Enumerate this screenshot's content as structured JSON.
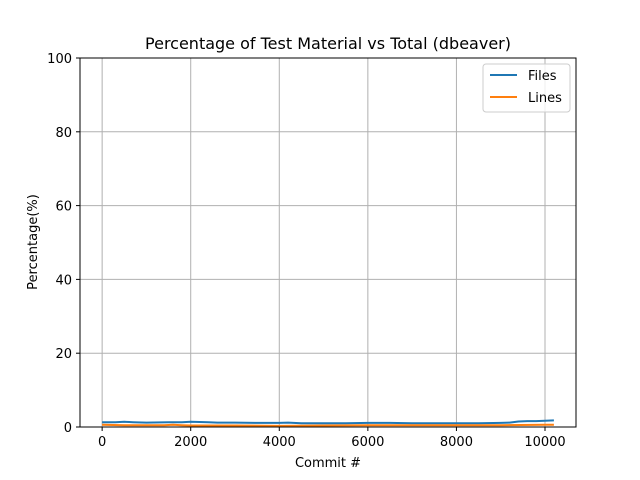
{
  "chart_data": {
    "type": "line",
    "title": "Percentage of Test Material vs Total (dbeaver)",
    "xlabel": "Commit #",
    "ylabel": "Percentage(%)",
    "xlim": [
      -500,
      10700
    ],
    "ylim": [
      0,
      100
    ],
    "xticks": [
      0,
      2000,
      4000,
      6000,
      8000,
      10000
    ],
    "xtick_labels": [
      "0",
      "2000",
      "4000",
      "6000",
      "8000",
      "10000"
    ],
    "yticks": [
      0,
      20,
      40,
      60,
      80,
      100
    ],
    "ytick_labels": [
      "0",
      "20",
      "40",
      "60",
      "80",
      "100"
    ],
    "grid": true,
    "legend_position": "upper right",
    "series": [
      {
        "name": "Files",
        "color": "#1f77b4",
        "x": [
          0,
          300,
          500,
          700,
          1000,
          1500,
          1800,
          2000,
          2400,
          2600,
          3000,
          3500,
          4000,
          4200,
          4500,
          5000,
          5500,
          6000,
          6500,
          7000,
          7500,
          8000,
          8500,
          9000,
          9200,
          9400,
          9600,
          9800,
          10000,
          10200
        ],
        "values": [
          1.3,
          1.3,
          1.4,
          1.3,
          1.2,
          1.3,
          1.3,
          1.4,
          1.3,
          1.2,
          1.2,
          1.1,
          1.1,
          1.2,
          1.0,
          1.0,
          1.0,
          1.1,
          1.1,
          1.0,
          1.0,
          1.0,
          1.0,
          1.1,
          1.2,
          1.5,
          1.6,
          1.6,
          1.7,
          1.8
        ]
      },
      {
        "name": "Lines",
        "color": "#ff7f0e",
        "x": [
          0,
          500,
          1000,
          1400,
          1600,
          1800,
          2000,
          3000,
          4000,
          5000,
          6000,
          7000,
          8000,
          9000,
          10000,
          10200
        ],
        "values": [
          0.6,
          0.5,
          0.5,
          0.5,
          0.6,
          0.5,
          0.4,
          0.4,
          0.3,
          0.4,
          0.5,
          0.5,
          0.5,
          0.5,
          0.6,
          0.6
        ]
      }
    ]
  }
}
